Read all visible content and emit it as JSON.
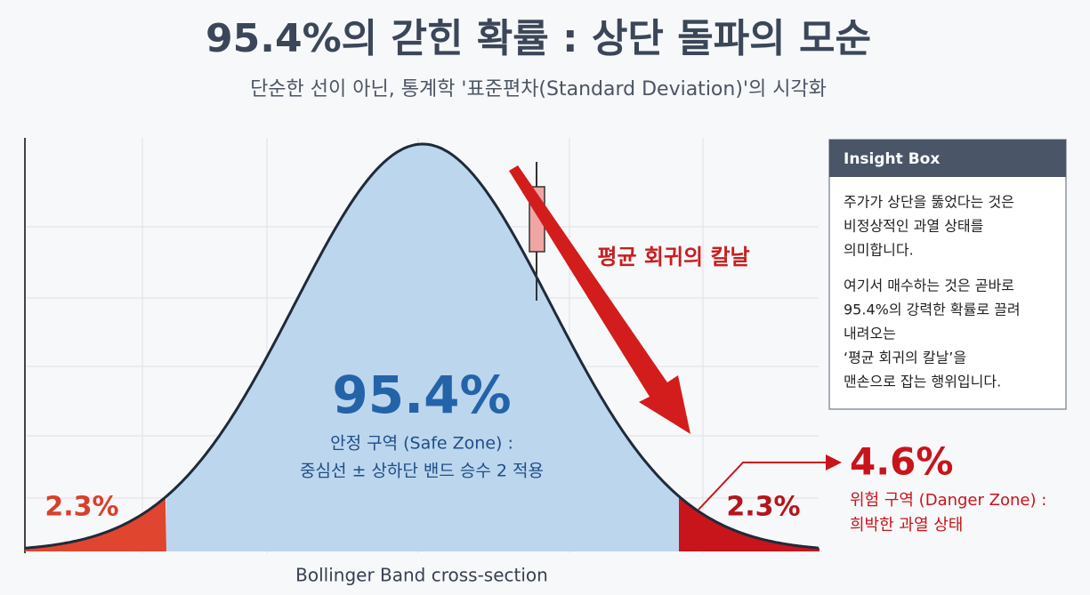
{
  "header": {
    "title": "95.4%의 갇힌 확률 : 상단 돌파의 모순",
    "subtitle": "단순한 선이 아닌, 통계학 '표준편차(Standard Deviation)'의 시각화"
  },
  "diagram": {
    "center_percent": "95.4%",
    "center_label": [
      "안정 구역 (Safe Zone) :",
      "중심선 ± 상하단 밴드 승수 2 적용"
    ],
    "left_tail": "2.3%",
    "right_tail": "2.3%",
    "arrow_label": "평균 회귀의 칼날",
    "danger_percent": "4.6%",
    "danger_label": [
      "위험 구역 (Danger Zone) :",
      "희박한 과열 상태"
    ],
    "axis_label": "Bollinger Band cross-section"
  },
  "insight_box": {
    "title": "Insight Box",
    "paragraphs": [
      [
        "주가가 상단을 뚫었다는 것은",
        "비정상적인 과열 상태를",
        "의미합니다."
      ],
      [
        "여기서 매수하는 것은 곧바로",
        "95.4%의 강력한 확률로 끌려",
        "내려오는",
        "‘평균 회귀의 칼날’을",
        "맨손으로 잡는 행위입니다."
      ]
    ]
  }
}
